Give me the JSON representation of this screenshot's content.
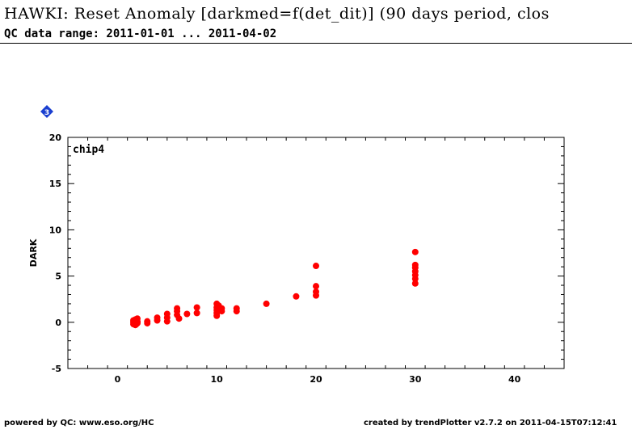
{
  "header": {
    "title": "HAWKI: Reset Anomaly [darkmed=f(det_dit)] (90 days period, clos",
    "subtitle": "QC data range: 2011-01-01 ... 2011-04-02"
  },
  "panel": {
    "badge": "3"
  },
  "footer": {
    "left": "powered by QC: www.eso.org/HC",
    "right": "created by trendPlotter v2.7.2 on 2011-04-15T07:12:41"
  },
  "colors": {
    "points": "#ff0000",
    "badge": "#1a3fd0"
  },
  "chart_data": {
    "type": "scatter",
    "ylabel": "DARK",
    "xlabel": "",
    "series": [
      {
        "name": "chip4",
        "points": [
          [
            1.6,
            -0.2
          ],
          [
            1.6,
            0.0
          ],
          [
            1.6,
            0.2
          ],
          [
            1.7,
            0.1
          ],
          [
            1.7,
            -0.1
          ],
          [
            1.8,
            0.3
          ],
          [
            1.8,
            -0.3
          ],
          [
            1.8,
            0.0
          ],
          [
            1.9,
            0.2
          ],
          [
            1.9,
            -0.2
          ],
          [
            2.0,
            0.1
          ],
          [
            2.0,
            0.4
          ],
          [
            2.0,
            -0.1
          ],
          [
            2.0,
            0.0
          ],
          [
            3.0,
            0.1
          ],
          [
            3.0,
            -0.1
          ],
          [
            4.0,
            0.5
          ],
          [
            4.0,
            0.2
          ],
          [
            5.0,
            0.9
          ],
          [
            5.0,
            0.5
          ],
          [
            5.0,
            0.1
          ],
          [
            6.0,
            1.5
          ],
          [
            6.0,
            1.2
          ],
          [
            6.0,
            0.8
          ],
          [
            6.2,
            0.4
          ],
          [
            7.0,
            0.9
          ],
          [
            8.0,
            1.6
          ],
          [
            8.0,
            1.0
          ],
          [
            10.0,
            2.0
          ],
          [
            10.0,
            1.6
          ],
          [
            10.0,
            1.3
          ],
          [
            10.0,
            1.0
          ],
          [
            10.0,
            0.7
          ],
          [
            10.2,
            1.8
          ],
          [
            10.5,
            1.5
          ],
          [
            10.5,
            1.2
          ],
          [
            12.0,
            1.5
          ],
          [
            12.0,
            1.2
          ],
          [
            15.0,
            2.0
          ],
          [
            18.0,
            2.8
          ],
          [
            20.0,
            6.1
          ],
          [
            20.0,
            3.9
          ],
          [
            20.0,
            3.3
          ],
          [
            20.0,
            2.9
          ],
          [
            30.0,
            7.6
          ],
          [
            30.0,
            6.2
          ],
          [
            30.0,
            5.9
          ],
          [
            30.0,
            5.5
          ],
          [
            30.0,
            5.1
          ],
          [
            30.0,
            4.7
          ],
          [
            30.0,
            4.2
          ]
        ]
      }
    ],
    "xlim": [
      -5,
      45
    ],
    "ylim": [
      -5,
      20
    ],
    "xticks": [
      0,
      10,
      20,
      30,
      40
    ],
    "yticks": [
      -5,
      0,
      5,
      10,
      15,
      20
    ],
    "grid": false,
    "legend": "top-left"
  }
}
